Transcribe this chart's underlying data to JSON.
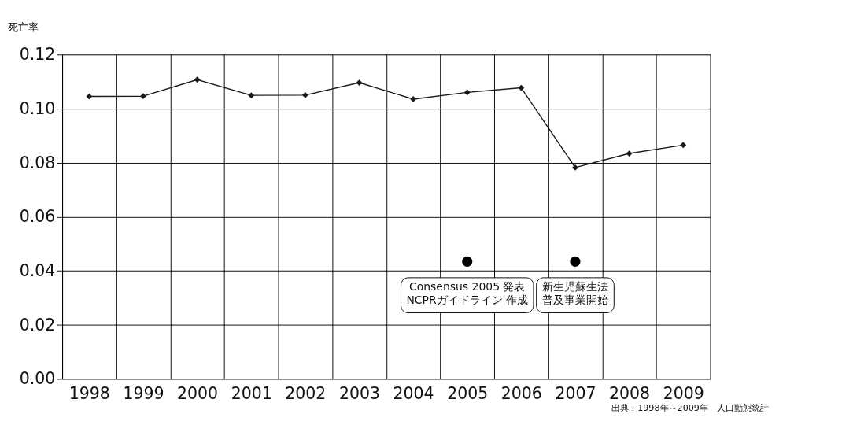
{
  "chart_data": {
    "type": "line",
    "ylabel": "死亡率",
    "categories": [
      "1998",
      "1999",
      "2000",
      "2001",
      "2002",
      "2003",
      "2004",
      "2005",
      "2006",
      "2007",
      "2008",
      "2009"
    ],
    "series": [
      {
        "color": "#1a1a1a",
        "marker": "diamond",
        "line_style": "solid",
        "values": [
          0.1045,
          0.1046,
          0.1107,
          0.1049,
          0.105,
          0.1096,
          0.1035,
          0.106,
          0.1077,
          0.0782,
          0.0834,
          0.0865
        ]
      },
      {
        "type": "scatter",
        "color": "#000000",
        "marker": "circle",
        "values": [
          null,
          null,
          null,
          null,
          null,
          null,
          null,
          0.0434,
          null,
          0.0434,
          null,
          null
        ]
      }
    ],
    "ylim": [
      0,
      0.12
    ],
    "yticks": [
      {
        "value": 0,
        "label": "0.00"
      },
      0.02,
      0.04,
      0.06,
      0.08,
      {
        "value": 0.1,
        "label": "0.10"
      },
      0.12
    ],
    "grid": true,
    "annotations": [
      {
        "text": "Consensus 2005 発表 NCPRガイドライン 作成",
        "x": "2005",
        "y": 0.0434
      },
      {
        "text": "新生児蘇生法普及事業開始",
        "x": "2007",
        "y": 0.0434
      },
      "出典：1998年～2009年　人口動態統計"
    ]
  }
}
